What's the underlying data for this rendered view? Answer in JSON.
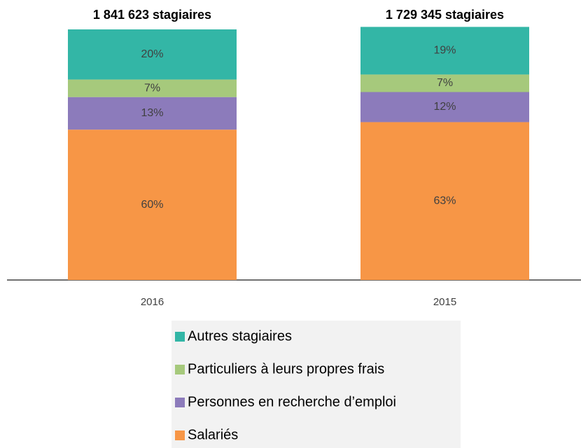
{
  "chart_data": {
    "type": "stacked_bar",
    "categories": [
      "2016",
      "2015"
    ],
    "annotations": [
      "1 841 623 stagiaires",
      "1 729 345 stagiaires"
    ],
    "series": [
      {
        "name": "Salariés",
        "color": "#f79646",
        "values": [
          60,
          63
        ],
        "value_labels": [
          "60%",
          "63%"
        ]
      },
      {
        "name": "Personnes en recherche d’emploi",
        "color": "#8c7bbb",
        "values": [
          13,
          12
        ],
        "value_labels": [
          "13%",
          "12%"
        ]
      },
      {
        "name": "Particuliers à leurs propres frais",
        "color": "#a6c97c",
        "values": [
          7,
          7
        ],
        "value_labels": [
          "7%",
          "7%"
        ]
      },
      {
        "name": "Autres stagiaires",
        "color": "#33b6a6",
        "values": [
          20,
          19
        ],
        "value_labels": [
          "20%",
          "19%"
        ]
      }
    ],
    "ylim": [
      0,
      100
    ]
  }
}
